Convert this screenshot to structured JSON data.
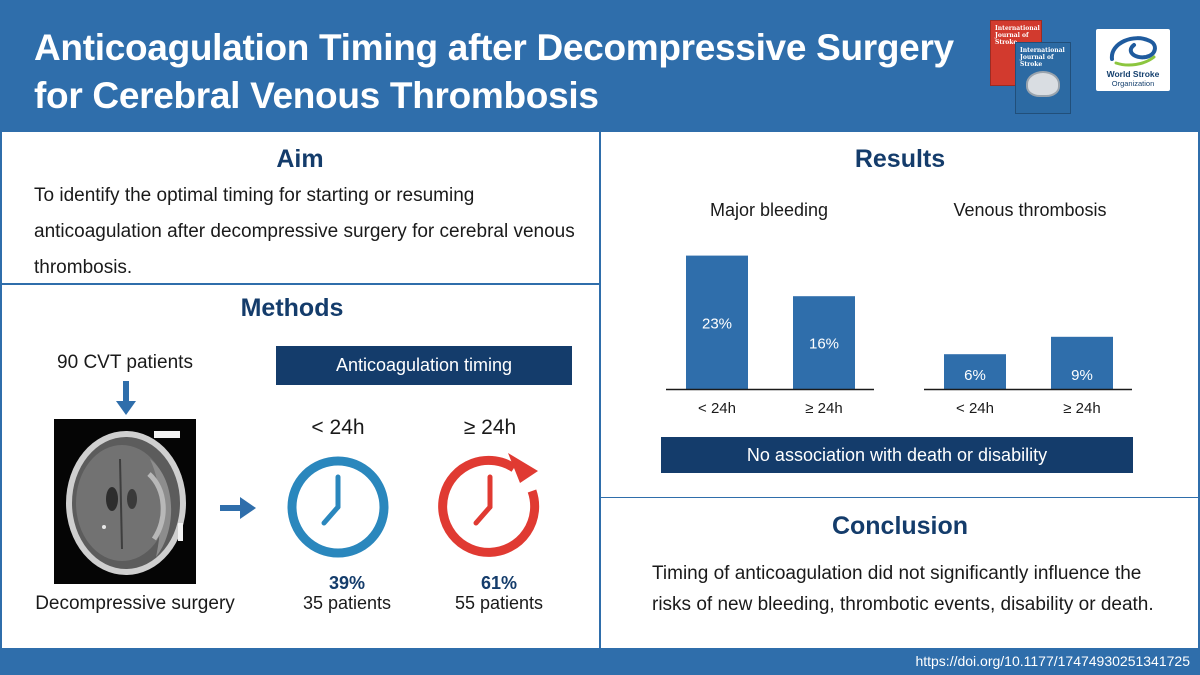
{
  "header": {
    "title_line1": "Anticoagulation Timing after Decompressive Surgery",
    "title_line2": "for Cerebral Venous Thrombosis",
    "journal_cover_title": "International Journal of Stroke",
    "logo_name": "World Stroke",
    "logo_org": "Organization"
  },
  "aim": {
    "title": "Aim",
    "text": "To identify the optimal timing for starting or resuming anticoagulation after decompressive surgery for cerebral venous thrombosis."
  },
  "methods": {
    "title": "Methods",
    "patients": "90 CVT patients",
    "image_label": "Decompressive surgery",
    "timing_header": "Anticoagulation timing",
    "groups": [
      {
        "label": "< 24h",
        "percent": "39%",
        "patients": "35 patients",
        "color": "#2a87bd"
      },
      {
        "label": "≥ 24h",
        "percent": "61%",
        "patients": "55 patients",
        "color": "#e03a32"
      }
    ]
  },
  "results": {
    "title": "Results",
    "no_association": "No association with death or disability"
  },
  "chart_data": [
    {
      "type": "bar",
      "title": "Major bleeding",
      "categories": [
        "< 24h",
        "≥ 24h"
      ],
      "values": [
        23,
        16
      ],
      "value_labels": [
        "23%",
        "16%"
      ],
      "ylim": [
        0,
        25
      ],
      "xlabel": "",
      "ylabel": "",
      "grid": false,
      "bar_color": "#2f6eab"
    },
    {
      "type": "bar",
      "title": "Venous thrombosis",
      "categories": [
        "< 24h",
        "≥ 24h"
      ],
      "values": [
        6,
        9
      ],
      "value_labels": [
        "6%",
        "9%"
      ],
      "ylim": [
        0,
        25
      ],
      "xlabel": "",
      "ylabel": "",
      "grid": false,
      "bar_color": "#2f6eab"
    }
  ],
  "conclusion": {
    "title": "Conclusion",
    "text": "Timing of anticoagulation did not significantly influence the risks of new bleeding, thrombotic events, disability or death."
  },
  "footer": {
    "doi": "https://doi.org/10.1177/17474930251341725"
  },
  "colors": {
    "header_bg": "#2f6eab",
    "dark_navy": "#143c6b"
  }
}
